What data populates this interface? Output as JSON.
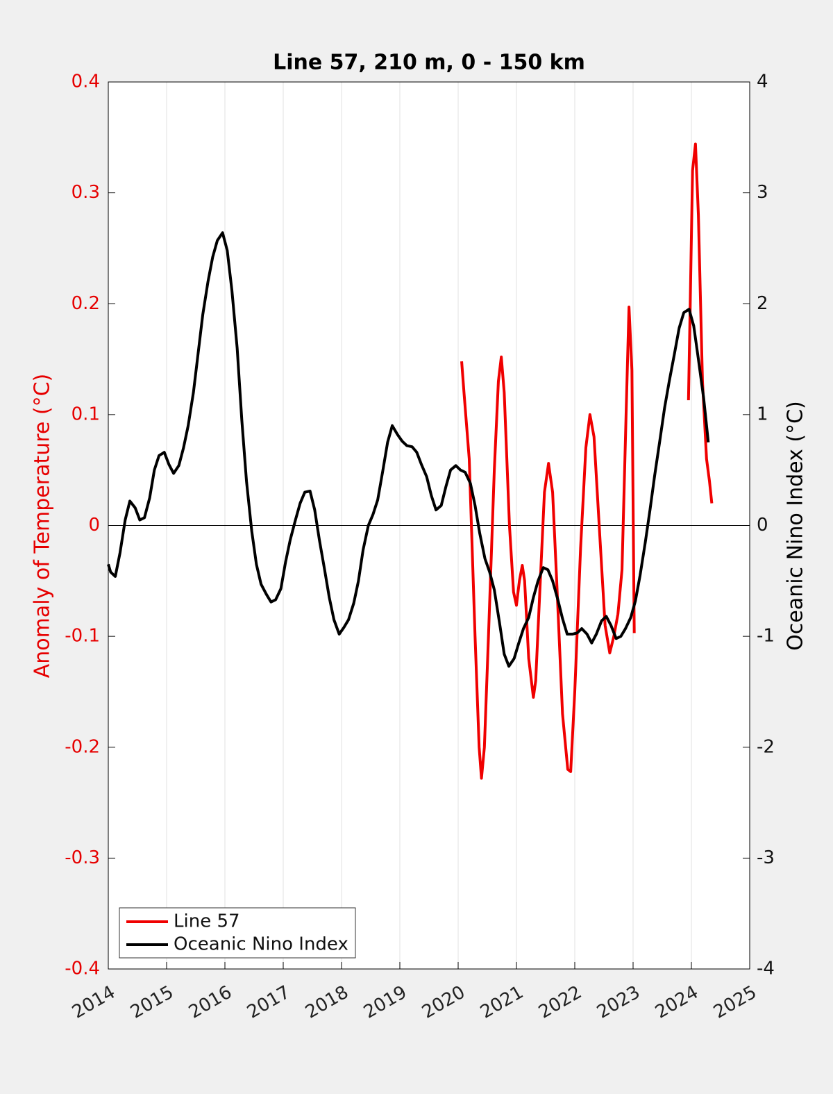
{
  "chart_data": {
    "type": "line",
    "title": "Line 57, 210 m, 0 - 150 km",
    "y_label": "Anomaly of Temperature (°C)",
    "y2_label": "Oceanic Nino Index (°C)",
    "xlim": [
      2014,
      2025
    ],
    "xticks": [
      2014,
      2015,
      2016,
      2017,
      2018,
      2019,
      2020,
      2021,
      2022,
      2023,
      2024,
      2025
    ],
    "ylim": [
      -0.4,
      0.4
    ],
    "yticks": [
      -0.4,
      -0.3,
      -0.2,
      -0.1,
      0,
      0.1,
      0.2,
      0.3,
      0.4
    ],
    "y2lim": [
      -4,
      4
    ],
    "y2ticks": [
      -4,
      -3,
      -2,
      -1,
      0,
      1,
      2,
      3,
      4
    ],
    "grid": true,
    "legend": "lower-left",
    "y_color": "#e60000",
    "series": [
      {
        "name": "Line 57",
        "color": "#f00000",
        "axis": "y",
        "x": [
          2020.06,
          2020.1,
          2020.19,
          2020.29,
          2020.36,
          2020.4,
          2020.45,
          2020.52,
          2020.62,
          2020.69,
          2020.74,
          2020.79,
          2020.88,
          2020.95,
          2021.0,
          2021.05,
          2021.1,
          2021.14,
          2021.21,
          2021.29,
          2021.33,
          2021.4,
          2021.48,
          2021.55,
          2021.62,
          2021.69,
          2021.79,
          2021.88,
          2021.93,
          2022.0,
          2022.1,
          2022.19,
          2022.26,
          2022.33,
          2022.43,
          2022.52,
          2022.6,
          2022.67,
          2022.74,
          2022.81,
          2022.88,
          2022.93,
          2022.98,
          2023.02,
          2023.5,
          2023.95,
          2023.98,
          2024.02,
          2024.07,
          2024.12,
          2024.19,
          2024.26,
          2024.31,
          2024.35
        ],
        "values": [
          0.148,
          0.12,
          0.06,
          -0.1,
          -0.2,
          -0.228,
          -0.2,
          -0.1,
          0.05,
          0.13,
          0.152,
          0.12,
          0.0,
          -0.06,
          -0.072,
          -0.05,
          -0.036,
          -0.05,
          -0.12,
          -0.155,
          -0.14,
          -0.06,
          0.03,
          0.056,
          0.03,
          -0.05,
          -0.17,
          -0.22,
          -0.222,
          -0.15,
          -0.02,
          0.07,
          0.1,
          0.08,
          -0.01,
          -0.09,
          -0.115,
          -0.1,
          -0.08,
          -0.04,
          0.1,
          0.197,
          0.14,
          -0.097,
          null,
          0.113,
          0.2,
          0.32,
          0.344,
          0.28,
          0.13,
          0.06,
          0.04,
          0.02
        ]
      },
      {
        "name": "Oceanic Nino Index",
        "color": "#000000",
        "axis": "y2",
        "x": [
          2014.0,
          2014.04,
          2014.12,
          2014.2,
          2014.29,
          2014.37,
          2014.46,
          2014.54,
          2014.62,
          2014.71,
          2014.79,
          2014.87,
          2014.96,
          2015.04,
          2015.12,
          2015.21,
          2015.29,
          2015.37,
          2015.46,
          2015.54,
          2015.62,
          2015.71,
          2015.79,
          2015.87,
          2015.96,
          2016.04,
          2016.12,
          2016.21,
          2016.29,
          2016.37,
          2016.46,
          2016.54,
          2016.62,
          2016.71,
          2016.79,
          2016.87,
          2016.96,
          2017.04,
          2017.12,
          2017.21,
          2017.29,
          2017.37,
          2017.46,
          2017.54,
          2017.62,
          2017.71,
          2017.79,
          2017.87,
          2017.96,
          2018.04,
          2018.12,
          2018.21,
          2018.29,
          2018.37,
          2018.46,
          2018.54,
          2018.62,
          2018.71,
          2018.79,
          2018.87,
          2018.96,
          2019.04,
          2019.12,
          2019.21,
          2019.29,
          2019.37,
          2019.46,
          2019.54,
          2019.62,
          2019.71,
          2019.79,
          2019.87,
          2019.96,
          2020.04,
          2020.12,
          2020.21,
          2020.29,
          2020.37,
          2020.46,
          2020.54,
          2020.62,
          2020.71,
          2020.79,
          2020.87,
          2020.96,
          2021.04,
          2021.12,
          2021.21,
          2021.29,
          2021.37,
          2021.46,
          2021.54,
          2021.62,
          2021.71,
          2021.79,
          2021.87,
          2021.96,
          2022.04,
          2022.12,
          2022.21,
          2022.29,
          2022.37,
          2022.46,
          2022.54,
          2022.62,
          2022.71,
          2022.79,
          2022.87,
          2022.96,
          2023.04,
          2023.12,
          2023.21,
          2023.29,
          2023.37,
          2023.46,
          2023.54,
          2023.62,
          2023.71,
          2023.79,
          2023.87,
          2023.96,
          2024.04,
          2024.12,
          2024.21,
          2024.29
        ],
        "values": [
          -0.35,
          -0.42,
          -0.46,
          -0.25,
          0.05,
          0.22,
          0.16,
          0.05,
          0.07,
          0.25,
          0.5,
          0.63,
          0.66,
          0.55,
          0.47,
          0.54,
          0.7,
          0.9,
          1.2,
          1.55,
          1.9,
          2.2,
          2.42,
          2.57,
          2.64,
          2.48,
          2.12,
          1.6,
          0.95,
          0.4,
          -0.05,
          -0.35,
          -0.53,
          -0.62,
          -0.69,
          -0.67,
          -0.57,
          -0.33,
          -0.13,
          0.05,
          0.2,
          0.3,
          0.31,
          0.14,
          -0.13,
          -0.4,
          -0.65,
          -0.85,
          -0.98,
          -0.92,
          -0.85,
          -0.7,
          -0.5,
          -0.22,
          0.0,
          0.1,
          0.23,
          0.5,
          0.75,
          0.9,
          0.82,
          0.76,
          0.72,
          0.71,
          0.66,
          0.55,
          0.44,
          0.27,
          0.14,
          0.18,
          0.35,
          0.5,
          0.54,
          0.5,
          0.48,
          0.38,
          0.18,
          -0.07,
          -0.3,
          -0.42,
          -0.58,
          -0.88,
          -1.16,
          -1.27,
          -1.2,
          -1.06,
          -0.93,
          -0.83,
          -0.65,
          -0.5,
          -0.38,
          -0.4,
          -0.5,
          -0.67,
          -0.84,
          -0.98,
          -0.98,
          -0.97,
          -0.93,
          -0.98,
          -1.06,
          -0.98,
          -0.86,
          -0.82,
          -0.9,
          -1.02,
          -1.0,
          -0.93,
          -0.83,
          -0.68,
          -0.45,
          -0.15,
          0.14,
          0.45,
          0.77,
          1.06,
          1.3,
          1.55,
          1.78,
          1.92,
          1.95,
          1.8,
          1.5,
          1.15,
          0.75
        ]
      }
    ]
  }
}
